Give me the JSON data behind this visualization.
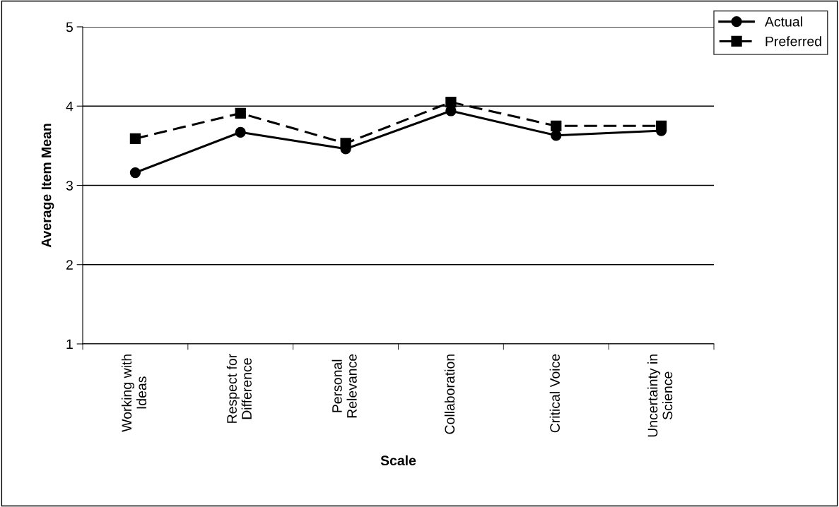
{
  "chart_data": {
    "type": "line",
    "xlabel": "Scale",
    "ylabel": "Average Item Mean",
    "categories": [
      "Working with\nIdeas",
      "Respect for\nDifference",
      "Personal\nRelevance",
      "Collaboration",
      "Critical Voice",
      "Uncertainty in\nScience"
    ],
    "series": [
      {
        "name": "Actual",
        "color": "#000000",
        "marker": "circle",
        "line_style": "solid",
        "values": [
          3.16,
          3.67,
          3.46,
          3.94,
          3.63,
          3.69
        ]
      },
      {
        "name": "Preferred",
        "color": "#000000",
        "marker": "square",
        "line_style": "dashed",
        "values": [
          3.59,
          3.91,
          3.53,
          4.05,
          3.75,
          3.75
        ]
      }
    ],
    "ylim": [
      1,
      5
    ],
    "yticks": [
      1,
      2,
      3,
      4,
      5
    ],
    "grid": "y",
    "legend": "top right"
  }
}
